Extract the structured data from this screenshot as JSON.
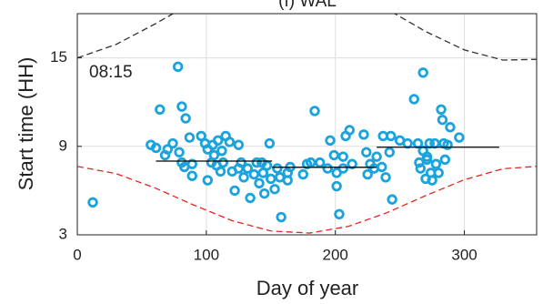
{
  "chart_data": {
    "type": "scatter",
    "title": "(f) WAL",
    "annotation": "08:15",
    "xlabel": "Day of year",
    "ylabel": "Start time (HH)",
    "xlim": [
      0,
      356
    ],
    "ylim": [
      3,
      18
    ],
    "xticks": [
      0,
      100,
      200,
      300
    ],
    "yticks": [
      3,
      9,
      15
    ],
    "grid": true,
    "series": [
      {
        "style": "dashed",
        "color": "#333333",
        "x": [
          0,
          30,
          60,
          90,
          120,
          150,
          180,
          210,
          240,
          270,
          300,
          330,
          360
        ],
        "values": [
          15.0,
          15.91,
          17.29,
          18.79,
          20.01,
          20.64,
          20.51,
          19.65,
          18.3,
          16.79,
          15.54,
          14.85,
          14.91
        ]
      },
      {
        "style": "dashed",
        "color": "#e8231f",
        "x": [
          0,
          30,
          60,
          90,
          120,
          150,
          180,
          210,
          240,
          270,
          300,
          330,
          360
        ],
        "values": [
          7.64,
          7.15,
          6.19,
          5.03,
          3.96,
          3.26,
          3.12,
          3.57,
          4.5,
          5.66,
          6.74,
          7.48,
          7.67
        ]
      },
      {
        "style": "markers",
        "color": "#1aa3dc",
        "x": [
          12,
          78,
          64,
          61,
          68,
          74,
          79,
          81,
          84,
          81,
          83,
          87,
          89,
          96,
          99,
          101,
          101,
          104,
          105,
          106,
          108,
          109,
          111,
          113,
          112,
          115,
          118,
          120,
          122,
          125,
          127,
          125,
          129,
          132,
          134,
          137,
          139,
          141,
          143,
          145,
          147,
          149,
          150,
          153,
          155,
          157,
          158,
          163,
          165,
          175,
          178,
          181,
          184,
          188,
          194,
          196,
          199,
          201,
          201,
          203,
          206,
          206,
          208,
          211,
          213,
          222,
          224,
          225,
          227,
          230,
          232,
          236,
          237,
          239,
          242,
          244,
          243,
          250,
          256,
          261,
          264,
          265,
          266,
          268,
          268,
          270,
          271,
          273,
          275,
          277,
          278,
          280,
          282,
          283,
          284,
          285,
          287,
          289,
          296,
          271,
          274,
          57,
          70,
          89,
          163,
          144
        ],
        "values": [
          5.2,
          14.4,
          11.5,
          8.9,
          8.4,
          9.2,
          8.6,
          11.7,
          10.9,
          7.9,
          7.6,
          9.6,
          7.0,
          9.7,
          9.2,
          8.8,
          6.7,
          7.9,
          9.1,
          8.4,
          7.7,
          9.4,
          7.3,
          7.9,
          8.7,
          9.7,
          9.3,
          7.3,
          6.0,
          7.5,
          7.9,
          9.1,
          6.9,
          7.5,
          5.5,
          7.1,
          7.9,
          6.5,
          7.9,
          5.8,
          7.7,
          9.2,
          6.8,
          6.1,
          7.5,
          6.9,
          4.2,
          7.2,
          7.6,
          7.1,
          7.8,
          7.9,
          11.4,
          7.9,
          7.5,
          9.4,
          8.4,
          7.2,
          6.3,
          4.4,
          7.5,
          8.3,
          9.7,
          10.1,
          7.8,
          9.8,
          8.6,
          7.1,
          7.8,
          7.5,
          8.3,
          7.6,
          9.7,
          6.9,
          8.6,
          5.4,
          9.7,
          9.4,
          9.2,
          12.2,
          9.2,
          7.9,
          7.5,
          14.0,
          8.7,
          6.8,
          8.1,
          9.2,
          6.7,
          9.2,
          7.8,
          7.2,
          11.5,
          10.8,
          9.2,
          8.1,
          9.1,
          10.3,
          9.6,
          8.3,
          7.2,
          9.1,
          8.8,
          7.8,
          6.7,
          7.2
        ]
      },
      {
        "style": "solid",
        "color": "#000000",
        "x": [
          61,
          151
        ],
        "values": [
          8.0,
          8.0
        ]
      },
      {
        "style": "solid",
        "color": "#000000",
        "x": [
          151,
          232
        ],
        "values": [
          7.58,
          7.58
        ]
      },
      {
        "style": "solid",
        "color": "#000000",
        "x": [
          232,
          327
        ],
        "values": [
          8.94,
          8.94
        ]
      }
    ]
  }
}
